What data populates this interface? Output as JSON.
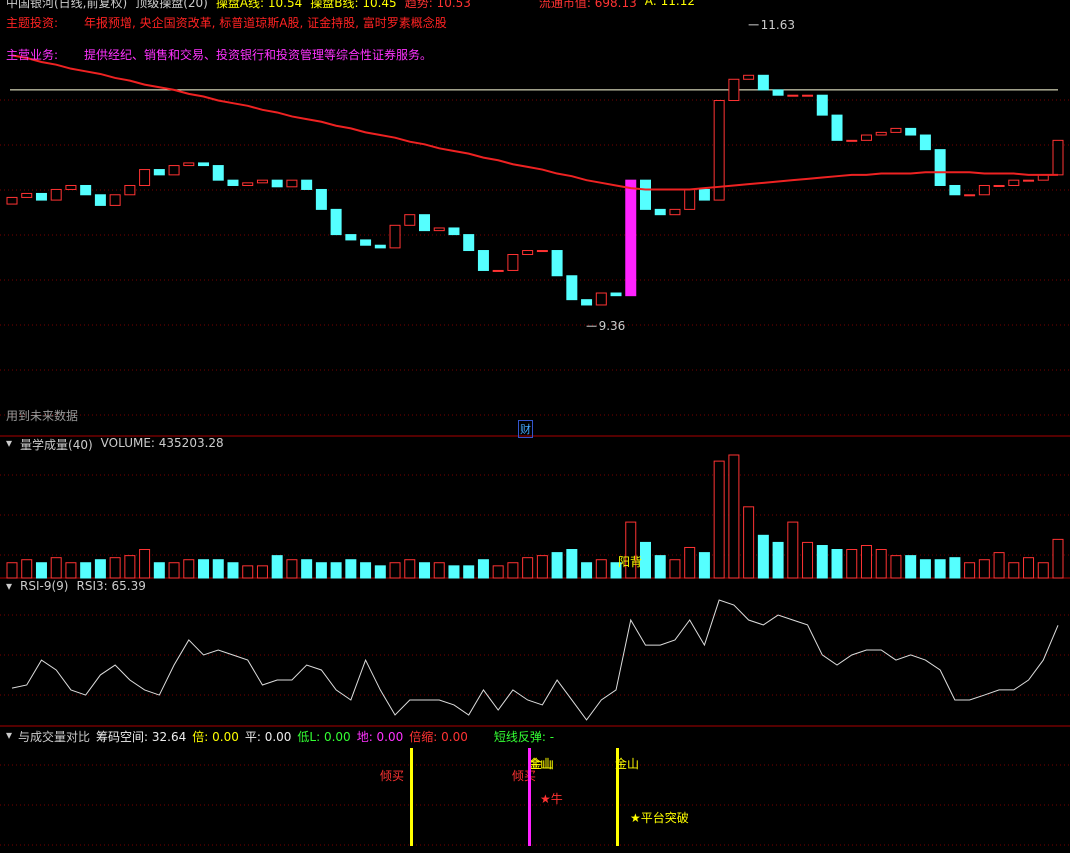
{
  "header": {
    "stock": "中国银河(日线,前复权)",
    "indicator": "顶级操盘(20)",
    "line_a": "操盘A线: 10.54",
    "line_b": "操盘B线: 10.45",
    "trend": "趋势: 10.53",
    "market_cap": "流通市值: 698.13",
    "a_value": "A: 11.12"
  },
  "theme": {
    "label": "主题投资:",
    "text": "年报预增, 央企国资改革, 标普道琼斯A股, 证金持股, 富时罗素概念股"
  },
  "business": {
    "label": "主营业务:",
    "text": "提供经纪、销售和交易、投资银行和投资管理等综合性证券服务。"
  },
  "future_note": "用到未来数据",
  "finance_tag": "财",
  "chart_data": [
    {
      "type": "candlestick",
      "ylim": [
        9.0,
        11.9
      ],
      "open": [
        10.28,
        10.33,
        10.36,
        10.31,
        10.39,
        10.42,
        10.35,
        10.27,
        10.35,
        10.42,
        10.54,
        10.5,
        10.57,
        10.59,
        10.57,
        10.46,
        10.42,
        10.44,
        10.46,
        10.41,
        10.46,
        10.39,
        10.24,
        10.05,
        10.01,
        9.97,
        9.95,
        10.12,
        10.2,
        10.08,
        10.1,
        10.05,
        9.93,
        9.78,
        9.78,
        9.9,
        9.93,
        9.93,
        9.74,
        9.56,
        9.52,
        9.61,
        9.59,
        10.46,
        10.24,
        10.2,
        10.24,
        10.39,
        10.31,
        11.06,
        11.22,
        11.25,
        11.14,
        11.1,
        11.1,
        11.1,
        10.95,
        10.76,
        10.76,
        10.8,
        10.82,
        10.85,
        10.8,
        10.69,
        10.42,
        10.35,
        10.35,
        10.42,
        10.42,
        10.46,
        10.46,
        10.5
      ],
      "close": [
        10.33,
        10.36,
        10.31,
        10.39,
        10.42,
        10.35,
        10.27,
        10.35,
        10.42,
        10.54,
        10.5,
        10.57,
        10.59,
        10.57,
        10.46,
        10.42,
        10.44,
        10.46,
        10.41,
        10.46,
        10.39,
        10.24,
        10.05,
        10.01,
        9.97,
        9.95,
        10.12,
        10.2,
        10.08,
        10.1,
        10.05,
        9.93,
        9.78,
        9.78,
        9.9,
        9.93,
        9.93,
        9.74,
        9.56,
        9.52,
        9.61,
        9.59,
        10.46,
        10.24,
        10.2,
        10.24,
        10.39,
        10.31,
        11.06,
        11.22,
        11.25,
        11.14,
        11.1,
        11.1,
        11.1,
        10.95,
        10.76,
        10.76,
        10.8,
        10.82,
        10.85,
        10.8,
        10.69,
        10.42,
        10.35,
        10.35,
        10.42,
        10.42,
        10.46,
        10.46,
        10.5,
        10.76
      ],
      "ma": [
        11.4,
        11.38,
        11.35,
        11.33,
        11.3,
        11.28,
        11.26,
        11.23,
        11.21,
        11.18,
        11.16,
        11.14,
        11.11,
        11.09,
        11.06,
        11.04,
        11.02,
        10.99,
        10.97,
        10.94,
        10.92,
        10.9,
        10.87,
        10.85,
        10.82,
        10.8,
        10.78,
        10.75,
        10.73,
        10.7,
        10.68,
        10.66,
        10.63,
        10.61,
        10.58,
        10.56,
        10.54,
        10.51,
        10.49,
        10.46,
        10.44,
        10.42,
        10.4,
        10.39,
        10.39,
        10.39,
        10.39,
        10.4,
        10.41,
        10.42,
        10.43,
        10.44,
        10.45,
        10.46,
        10.47,
        10.48,
        10.49,
        10.5,
        10.5,
        10.51,
        10.51,
        10.51,
        10.52,
        10.52,
        10.52,
        10.52,
        10.51,
        10.51,
        10.51,
        10.5,
        10.5,
        10.5
      ],
      "reference_line": 11.14,
      "high_mark": {
        "value": 11.63,
        "index": 50
      },
      "low_mark": {
        "value": 9.36,
        "index": 39
      }
    },
    {
      "type": "bar",
      "name": "量学成量(40)",
      "label": "VOLUME: 435203.28",
      "ylim": [
        0,
        1600000
      ],
      "note": "阳背",
      "note_index": 41,
      "values": [
        172000,
        206000,
        172000,
        229000,
        172000,
        172000,
        206000,
        229000,
        252000,
        321000,
        172000,
        172000,
        206000,
        206000,
        206000,
        172000,
        137000,
        137000,
        252000,
        206000,
        206000,
        172000,
        172000,
        206000,
        172000,
        137000,
        172000,
        206000,
        172000,
        172000,
        137000,
        137000,
        206000,
        137000,
        172000,
        229000,
        252000,
        286000,
        321000,
        172000,
        206000,
        172000,
        630000,
        401000,
        252000,
        206000,
        344000,
        286000,
        1317000,
        1386000,
        802000,
        481000,
        401000,
        630000,
        401000,
        366000,
        321000,
        321000,
        366000,
        321000,
        252000,
        252000,
        206000,
        206000,
        229000,
        172000,
        206000,
        286000,
        172000,
        229000,
        172000,
        435203.28
      ]
    },
    {
      "type": "line",
      "name": "RSI-9(9)",
      "label": "RSI3: 65.39",
      "ylim": [
        0,
        100
      ],
      "values": [
        31.1,
        32.8,
        46.4,
        41.0,
        30.1,
        27.3,
        38.3,
        43.7,
        35.5,
        30.1,
        27.3,
        43.7,
        57.4,
        49.2,
        51.9,
        49.2,
        46.4,
        32.8,
        35.5,
        35.5,
        43.7,
        41.0,
        30.1,
        24.6,
        46.4,
        30.1,
        16.4,
        24.6,
        24.6,
        24.6,
        21.9,
        16.4,
        30.1,
        19.1,
        30.1,
        24.6,
        21.9,
        35.5,
        24.6,
        13.7,
        24.6,
        30.1,
        68.3,
        54.6,
        54.6,
        57.4,
        68.3,
        54.6,
        79.2,
        76.5,
        68.3,
        65.6,
        71.0,
        68.3,
        65.6,
        49.2,
        43.7,
        49.2,
        51.9,
        51.9,
        46.4,
        49.2,
        46.4,
        41.0,
        24.6,
        24.6,
        27.3,
        30.1,
        30.1,
        35.5,
        46.4,
        65.39
      ]
    }
  ],
  "bottom_panel": {
    "name": "与成交量对比",
    "items": [
      "筹码空间: 32.64",
      "倍: 0.00",
      "平: 0.00",
      "低L: 0.00",
      "地: 0.00",
      "倍缩: 0.00",
      "短线反弹: -"
    ],
    "signals": [
      "倾买",
      "金山",
      "倾买",
      "金山",
      "★牛",
      "金山",
      "★平台突破"
    ]
  }
}
